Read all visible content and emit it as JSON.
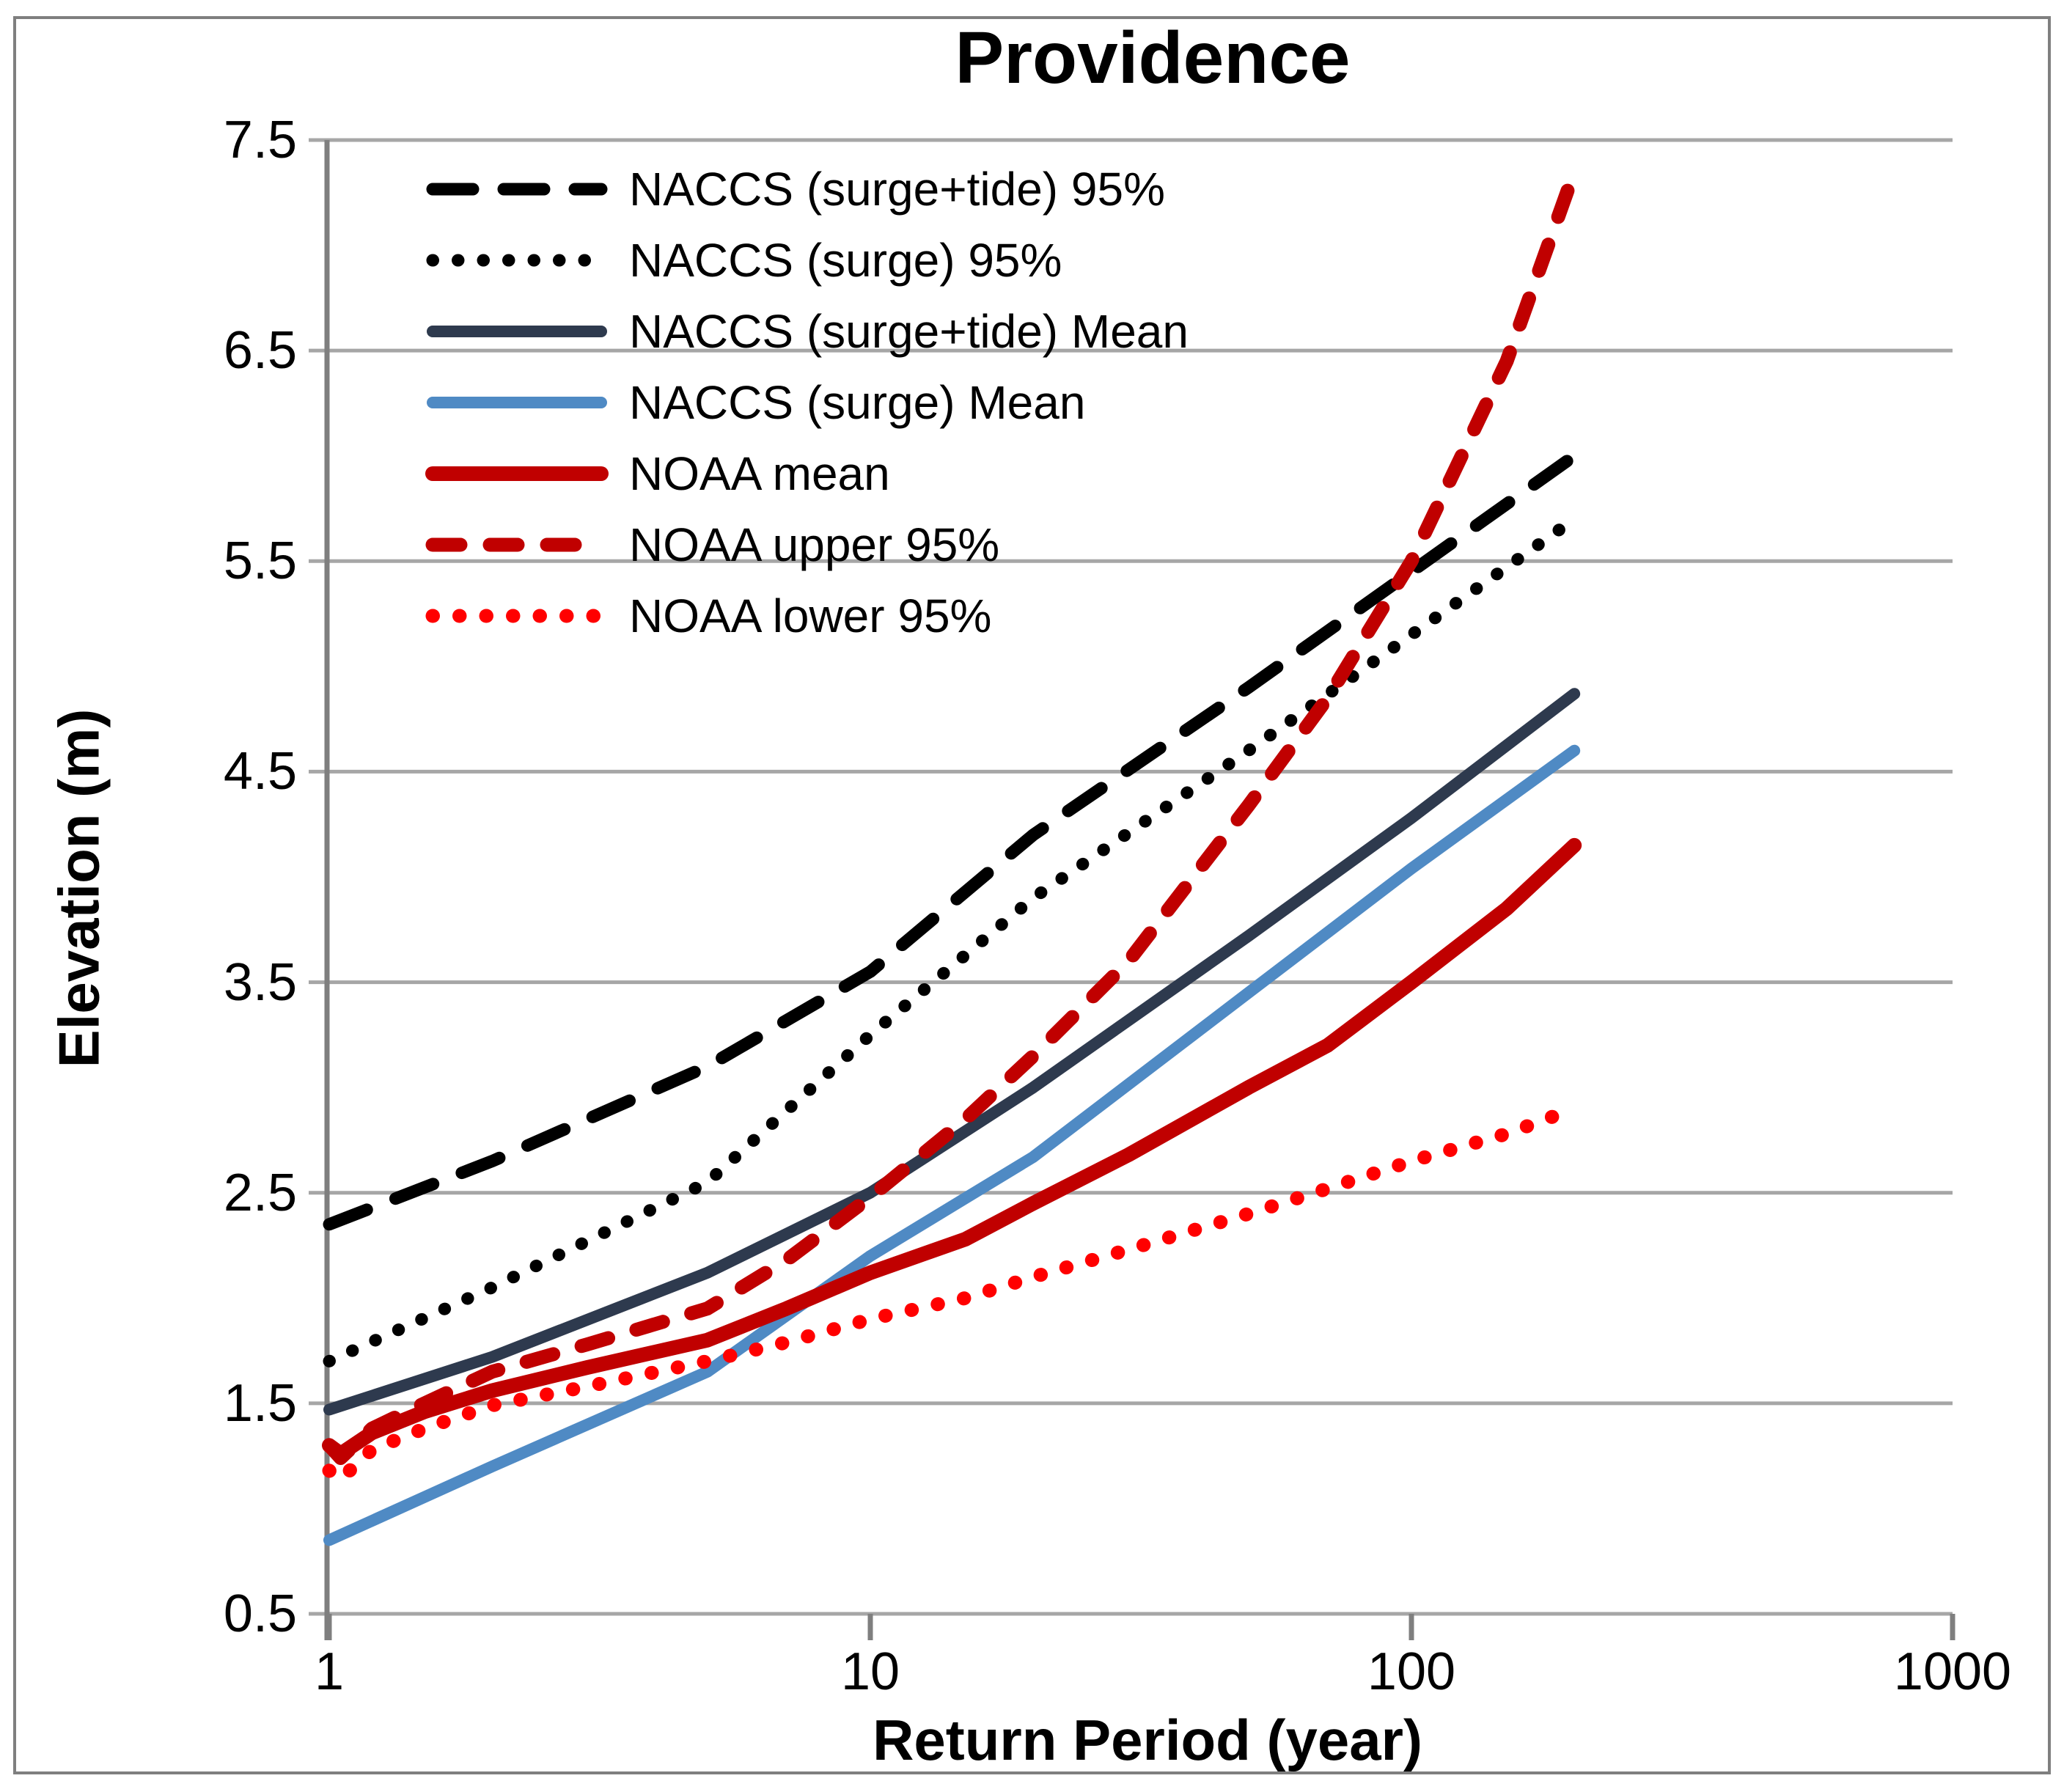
{
  "chart_data": {
    "type": "line",
    "title": "Providence",
    "xlabel": "Return Period (year)",
    "ylabel": "Elevation (m)",
    "x_scale": "log",
    "xlim": [
      1,
      1000
    ],
    "ylim": [
      0.5,
      7.5
    ],
    "grid": "horizontal-on",
    "legend_position": "top-left-inside",
    "xticks": [
      {
        "value": 1,
        "label": "1"
      },
      {
        "value": 10,
        "label": "10"
      },
      {
        "value": 100,
        "label": "100"
      },
      {
        "value": 1000,
        "label": "1000"
      }
    ],
    "yticks": [
      {
        "value": 0.5,
        "label": "0.5"
      },
      {
        "value": 1.5,
        "label": "1.5"
      },
      {
        "value": 2.5,
        "label": "2.5"
      },
      {
        "value": 3.5,
        "label": "3.5"
      },
      {
        "value": 4.5,
        "label": "4.5"
      },
      {
        "value": 5.5,
        "label": "5.5"
      },
      {
        "value": 6.5,
        "label": "6.5"
      },
      {
        "value": 7.5,
        "label": "7.5"
      }
    ],
    "series": [
      {
        "name": "NACCS (surge+tide) 95%",
        "color": "#000000",
        "style": "dash",
        "width": 17,
        "dasharray": "55 42",
        "points": [
          [
            1,
            2.35
          ],
          [
            2,
            2.65
          ],
          [
            5,
            3.1
          ],
          [
            10,
            3.55
          ],
          [
            20,
            4.2
          ],
          [
            50,
            4.9
          ],
          [
            100,
            5.45
          ],
          [
            200,
            6.0
          ]
        ]
      },
      {
        "name": "NACCS (surge) 95%",
        "color": "#000000",
        "style": "dot",
        "width": 17,
        "dasharray": "0.5 34",
        "points": [
          [
            1,
            1.7
          ],
          [
            2,
            2.05
          ],
          [
            5,
            2.55
          ],
          [
            10,
            3.25
          ],
          [
            20,
            3.9
          ],
          [
            50,
            4.6
          ],
          [
            100,
            5.15
          ],
          [
            200,
            5.7
          ]
        ]
      },
      {
        "name": "NACCS (surge+tide) Mean",
        "color": "#2e3a4e",
        "style": "solid",
        "width": 16,
        "dasharray": "",
        "points": [
          [
            1,
            1.47
          ],
          [
            2,
            1.72
          ],
          [
            5,
            2.12
          ],
          [
            10,
            2.5
          ],
          [
            20,
            3.0
          ],
          [
            50,
            3.72
          ],
          [
            100,
            4.28
          ],
          [
            200,
            4.87
          ]
        ]
      },
      {
        "name": "NACCS (surge) Mean",
        "color": "#4f8ac4",
        "style": "solid",
        "width": 16,
        "dasharray": "",
        "points": [
          [
            1,
            0.85
          ],
          [
            2,
            1.2
          ],
          [
            5,
            1.65
          ],
          [
            10,
            2.2
          ],
          [
            20,
            2.67
          ],
          [
            50,
            3.45
          ],
          [
            100,
            4.04
          ],
          [
            200,
            4.6
          ]
        ]
      },
      {
        "name": "NOAA mean",
        "color": "#c00000",
        "style": "solid",
        "width": 20,
        "dasharray": "",
        "points": [
          [
            1,
            1.3
          ],
          [
            1.05,
            1.26
          ],
          [
            1.2,
            1.36
          ],
          [
            1.5,
            1.46
          ],
          [
            2,
            1.56
          ],
          [
            3,
            1.67
          ],
          [
            5,
            1.8
          ],
          [
            7,
            1.95
          ],
          [
            10,
            2.12
          ],
          [
            15,
            2.28
          ],
          [
            20,
            2.45
          ],
          [
            30,
            2.68
          ],
          [
            50,
            3.0
          ],
          [
            70,
            3.2
          ],
          [
            100,
            3.5
          ],
          [
            150,
            3.85
          ],
          [
            200,
            4.15
          ]
        ]
      },
      {
        "name": "NOAA upper 95%",
        "color": "#c00000",
        "style": "dash",
        "width": 19,
        "dasharray": "38 40",
        "points": [
          [
            1,
            1.3
          ],
          [
            1.05,
            1.24
          ],
          [
            1.2,
            1.38
          ],
          [
            1.5,
            1.5
          ],
          [
            2,
            1.65
          ],
          [
            3,
            1.78
          ],
          [
            5,
            1.95
          ],
          [
            7,
            2.18
          ],
          [
            10,
            2.48
          ],
          [
            15,
            2.85
          ],
          [
            20,
            3.15
          ],
          [
            30,
            3.6
          ],
          [
            50,
            4.34
          ],
          [
            70,
            4.85
          ],
          [
            100,
            5.5
          ],
          [
            150,
            6.45
          ],
          [
            200,
            7.35
          ]
        ]
      },
      {
        "name": "NOAA lower 95%",
        "color": "#ff0000",
        "style": "dot",
        "width": 19,
        "dasharray": "0.5 36",
        "points": [
          [
            1,
            1.18
          ],
          [
            1.05,
            1.14
          ],
          [
            1.2,
            1.28
          ],
          [
            1.5,
            1.38
          ],
          [
            2,
            1.49
          ],
          [
            3,
            1.58
          ],
          [
            5,
            1.7
          ],
          [
            7,
            1.79
          ],
          [
            10,
            1.9
          ],
          [
            15,
            2.0
          ],
          [
            20,
            2.1
          ],
          [
            30,
            2.23
          ],
          [
            50,
            2.4
          ],
          [
            70,
            2.52
          ],
          [
            100,
            2.65
          ],
          [
            150,
            2.78
          ],
          [
            200,
            2.9
          ]
        ]
      }
    ]
  }
}
